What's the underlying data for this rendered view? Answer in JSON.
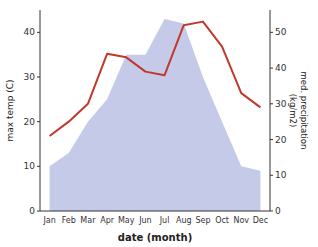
{
  "chart_data": {
    "type": "line",
    "xlabel": "date (month)",
    "ylabel": "max temp (C)",
    "y2label": "med. precipitation\n(kg/m2)",
    "categories": [
      "Jan",
      "Feb",
      "Mar",
      "Apr",
      "May",
      "Jun",
      "Jul",
      "Aug",
      "Sep",
      "Oct",
      "Nov",
      "Dec"
    ],
    "series": [
      {
        "type": "area",
        "color": "#c5cae9",
        "values": [
          10,
          13,
          20,
          25,
          35,
          35,
          43,
          42,
          30,
          20,
          10,
          9
        ]
      },
      {
        "type": "line",
        "color": "#c0392b",
        "axis": "y2",
        "values": [
          21,
          25,
          30,
          44,
          43,
          39,
          38,
          52,
          53,
          46,
          33,
          29
        ]
      }
    ],
    "ylim": [
      0,
      45
    ],
    "yticks": [
      0,
      10,
      20,
      30,
      40
    ],
    "y2lim": [
      0,
      56.25
    ],
    "y2ticks": [
      0,
      10,
      20,
      30,
      40,
      50
    ],
    "grid": false
  }
}
